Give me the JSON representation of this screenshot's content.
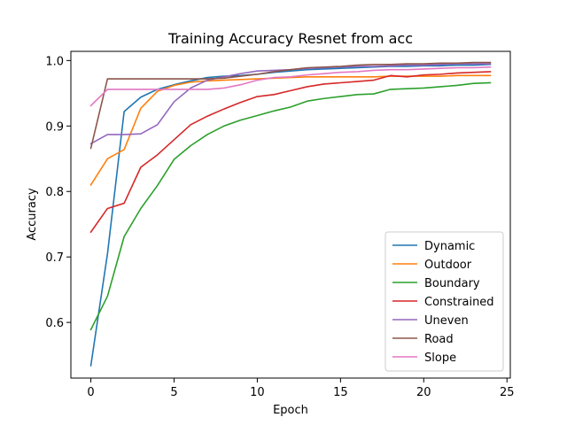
{
  "chart_data": {
    "type": "line",
    "title": "Training Accuracy Resnet from acc",
    "xlabel": "Epoch",
    "ylabel": "Accuracy",
    "xlim": [
      -1.2,
      25.2
    ],
    "ylim": [
      0.515,
      1.014
    ],
    "xticks": [
      0,
      5,
      10,
      15,
      20,
      25
    ],
    "yticks": [
      0.6,
      0.7,
      0.8,
      0.9,
      1.0
    ],
    "ytick_labels": [
      "0.6",
      "0.7",
      "0.8",
      "0.9",
      "1.0"
    ],
    "legend_position": "lower right",
    "grid": false,
    "x": [
      0,
      1,
      2,
      3,
      4,
      5,
      6,
      7,
      8,
      9,
      10,
      11,
      12,
      13,
      14,
      15,
      16,
      17,
      18,
      19,
      20,
      21,
      22,
      23,
      24
    ],
    "series": [
      {
        "name": "Dynamic",
        "color": "#1f77b4",
        "values": [
          0.534,
          0.705,
          0.922,
          0.944,
          0.956,
          0.963,
          0.969,
          0.974,
          0.976,
          0.977,
          0.979,
          0.982,
          0.984,
          0.986,
          0.987,
          0.988,
          0.989,
          0.99,
          0.991,
          0.991,
          0.992,
          0.992,
          0.993,
          0.993,
          0.994
        ]
      },
      {
        "name": "Outdoor",
        "color": "#ff7f0e",
        "values": [
          0.81,
          0.85,
          0.864,
          0.927,
          0.953,
          0.962,
          0.967,
          0.969,
          0.97,
          0.971,
          0.972,
          0.973,
          0.974,
          0.975,
          0.975,
          0.975,
          0.975,
          0.975,
          0.976,
          0.976,
          0.976,
          0.976,
          0.977,
          0.977,
          0.977
        ]
      },
      {
        "name": "Boundary",
        "color": "#2ca02c",
        "values": [
          0.589,
          0.64,
          0.731,
          0.774,
          0.809,
          0.849,
          0.87,
          0.887,
          0.9,
          0.909,
          0.916,
          0.923,
          0.929,
          0.938,
          0.942,
          0.945,
          0.948,
          0.949,
          0.956,
          0.957,
          0.958,
          0.96,
          0.962,
          0.965,
          0.966
        ]
      },
      {
        "name": "Constrained",
        "color": "#d62728",
        "values": [
          0.738,
          0.774,
          0.782,
          0.837,
          0.856,
          0.879,
          0.902,
          0.915,
          0.926,
          0.936,
          0.945,
          0.948,
          0.954,
          0.96,
          0.964,
          0.966,
          0.968,
          0.97,
          0.977,
          0.975,
          0.978,
          0.979,
          0.981,
          0.982,
          0.983
        ]
      },
      {
        "name": "Uneven",
        "color": "#9467bd",
        "values": [
          0.873,
          0.887,
          0.887,
          0.888,
          0.902,
          0.937,
          0.958,
          0.97,
          0.975,
          0.98,
          0.984,
          0.985,
          0.986,
          0.988,
          0.989,
          0.99,
          0.991,
          0.991,
          0.992,
          0.993,
          0.993,
          0.994,
          0.995,
          0.995,
          0.995
        ]
      },
      {
        "name": "Road",
        "color": "#8c564b",
        "values": [
          0.866,
          0.972,
          0.972,
          0.972,
          0.972,
          0.972,
          0.972,
          0.972,
          0.973,
          0.976,
          0.979,
          0.983,
          0.986,
          0.989,
          0.99,
          0.991,
          0.993,
          0.994,
          0.994,
          0.995,
          0.995,
          0.996,
          0.996,
          0.997,
          0.997
        ]
      },
      {
        "name": "Slope",
        "color": "#e377c2",
        "values": [
          0.931,
          0.956,
          0.956,
          0.956,
          0.956,
          0.956,
          0.956,
          0.956,
          0.958,
          0.963,
          0.97,
          0.974,
          0.975,
          0.978,
          0.98,
          0.982,
          0.983,
          0.985,
          0.986,
          0.986,
          0.987,
          0.988,
          0.989,
          0.989,
          0.99
        ]
      }
    ]
  }
}
